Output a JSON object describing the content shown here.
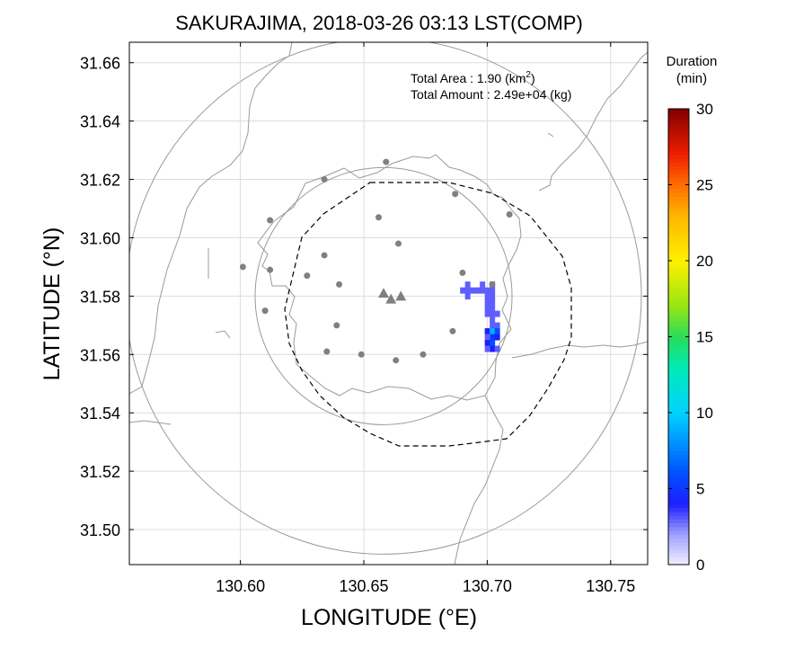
{
  "title": "SAKURAJIMA, 2018-03-26 03:13 LST(COMP)",
  "info": {
    "area_label": "Total Area   : 1.90 (km",
    "area_sup": "2",
    "area_close": ")",
    "amount_label": "Total Amount : 2.49e+04 (kg)"
  },
  "colorbar": {
    "title_line1": "Duration",
    "title_line2": "(min)",
    "range": [
      0,
      30
    ],
    "ticks": [
      0,
      5,
      10,
      15,
      20,
      25,
      30
    ],
    "tick_labels": [
      "0",
      "5",
      "10",
      "15",
      "20",
      "25",
      "30"
    ]
  },
  "chart_data": {
    "type": "map",
    "xlabel": "LONGITUDE (°E)",
    "ylabel": "LATITUDE (°N)",
    "xlim": [
      130.555,
      130.765
    ],
    "ylim": [
      31.488,
      31.667
    ],
    "xticks": [
      130.6,
      130.65,
      130.7,
      130.75
    ],
    "xtick_labels": [
      "130.60",
      "130.65",
      "130.70",
      "130.75"
    ],
    "yticks": [
      31.5,
      31.52,
      31.54,
      31.56,
      31.58,
      31.6,
      31.62,
      31.64,
      31.66
    ],
    "ytick_labels": [
      "31.50",
      "31.52",
      "31.54",
      "31.56",
      "31.58",
      "31.60",
      "31.62",
      "31.64",
      "31.66"
    ],
    "grid": true,
    "vents": [
      {
        "lon": 130.658,
        "lat": 31.581
      },
      {
        "lon": 130.661,
        "lat": 31.579
      },
      {
        "lon": 130.665,
        "lat": 31.58
      }
    ],
    "stations": [
      {
        "lon": 130.659,
        "lat": 31.626
      },
      {
        "lon": 130.634,
        "lat": 31.62
      },
      {
        "lon": 130.687,
        "lat": 31.615
      },
      {
        "lon": 130.656,
        "lat": 31.607
      },
      {
        "lon": 130.612,
        "lat": 31.606
      },
      {
        "lon": 130.709,
        "lat": 31.608
      },
      {
        "lon": 130.664,
        "lat": 31.598
      },
      {
        "lon": 130.601,
        "lat": 31.59
      },
      {
        "lon": 130.612,
        "lat": 31.589
      },
      {
        "lon": 130.634,
        "lat": 31.594
      },
      {
        "lon": 130.627,
        "lat": 31.587
      },
      {
        "lon": 130.69,
        "lat": 31.588
      },
      {
        "lon": 130.64,
        "lat": 31.584
      },
      {
        "lon": 130.702,
        "lat": 31.584
      },
      {
        "lon": 130.61,
        "lat": 31.575
      },
      {
        "lon": 130.639,
        "lat": 31.57
      },
      {
        "lon": 130.686,
        "lat": 31.568
      },
      {
        "lon": 130.635,
        "lat": 31.561
      },
      {
        "lon": 130.649,
        "lat": 31.56
      },
      {
        "lon": 130.674,
        "lat": 31.56
      },
      {
        "lon": 130.663,
        "lat": 31.558
      }
    ],
    "range_circles_km": [
      5,
      10
    ],
    "ash_cells": [
      {
        "lon": 130.69,
        "lat": 31.582,
        "value": 3
      },
      {
        "lon": 130.692,
        "lat": 31.582,
        "value": 3
      },
      {
        "lon": 130.694,
        "lat": 31.582,
        "value": 3
      },
      {
        "lon": 130.692,
        "lat": 31.584,
        "value": 3
      },
      {
        "lon": 130.692,
        "lat": 31.58,
        "value": 3
      },
      {
        "lon": 130.696,
        "lat": 31.582,
        "value": 3
      },
      {
        "lon": 130.698,
        "lat": 31.582,
        "value": 3
      },
      {
        "lon": 130.7,
        "lat": 31.582,
        "value": 3
      },
      {
        "lon": 130.702,
        "lat": 31.582,
        "value": 3
      },
      {
        "lon": 130.698,
        "lat": 31.584,
        "value": 3
      },
      {
        "lon": 130.702,
        "lat": 31.584,
        "value": 3
      },
      {
        "lon": 130.7,
        "lat": 31.58,
        "value": 3
      },
      {
        "lon": 130.702,
        "lat": 31.58,
        "value": 3
      },
      {
        "lon": 130.7,
        "lat": 31.578,
        "value": 3
      },
      {
        "lon": 130.702,
        "lat": 31.578,
        "value": 3
      },
      {
        "lon": 130.7,
        "lat": 31.576,
        "value": 3
      },
      {
        "lon": 130.702,
        "lat": 31.576,
        "value": 3
      },
      {
        "lon": 130.7,
        "lat": 31.574,
        "value": 3
      },
      {
        "lon": 130.702,
        "lat": 31.574,
        "value": 3
      },
      {
        "lon": 130.704,
        "lat": 31.574,
        "value": 3
      },
      {
        "lon": 130.702,
        "lat": 31.572,
        "value": 3
      },
      {
        "lon": 130.702,
        "lat": 31.57,
        "value": 3
      },
      {
        "lon": 130.704,
        "lat": 31.57,
        "value": 3
      },
      {
        "lon": 130.7,
        "lat": 31.568,
        "value": 4
      },
      {
        "lon": 130.702,
        "lat": 31.568,
        "value": 9
      },
      {
        "lon": 130.704,
        "lat": 31.568,
        "value": 6
      },
      {
        "lon": 130.702,
        "lat": 31.566,
        "value": 5
      },
      {
        "lon": 130.704,
        "lat": 31.566,
        "value": 4
      },
      {
        "lon": 130.7,
        "lat": 31.566,
        "value": 3
      },
      {
        "lon": 130.7,
        "lat": 31.564,
        "value": 4
      },
      {
        "lon": 130.702,
        "lat": 31.564,
        "value": 6
      },
      {
        "lon": 130.702,
        "lat": 31.562,
        "value": 4
      },
      {
        "lon": 130.704,
        "lat": 31.562,
        "value": 3
      },
      {
        "lon": 130.7,
        "lat": 31.562,
        "value": 3
      }
    ],
    "colors": {
      "coast": "#9a9a9a",
      "grid": "#dcdcdc",
      "markers": "#808080",
      "dashed_outline": "#000000"
    }
  }
}
